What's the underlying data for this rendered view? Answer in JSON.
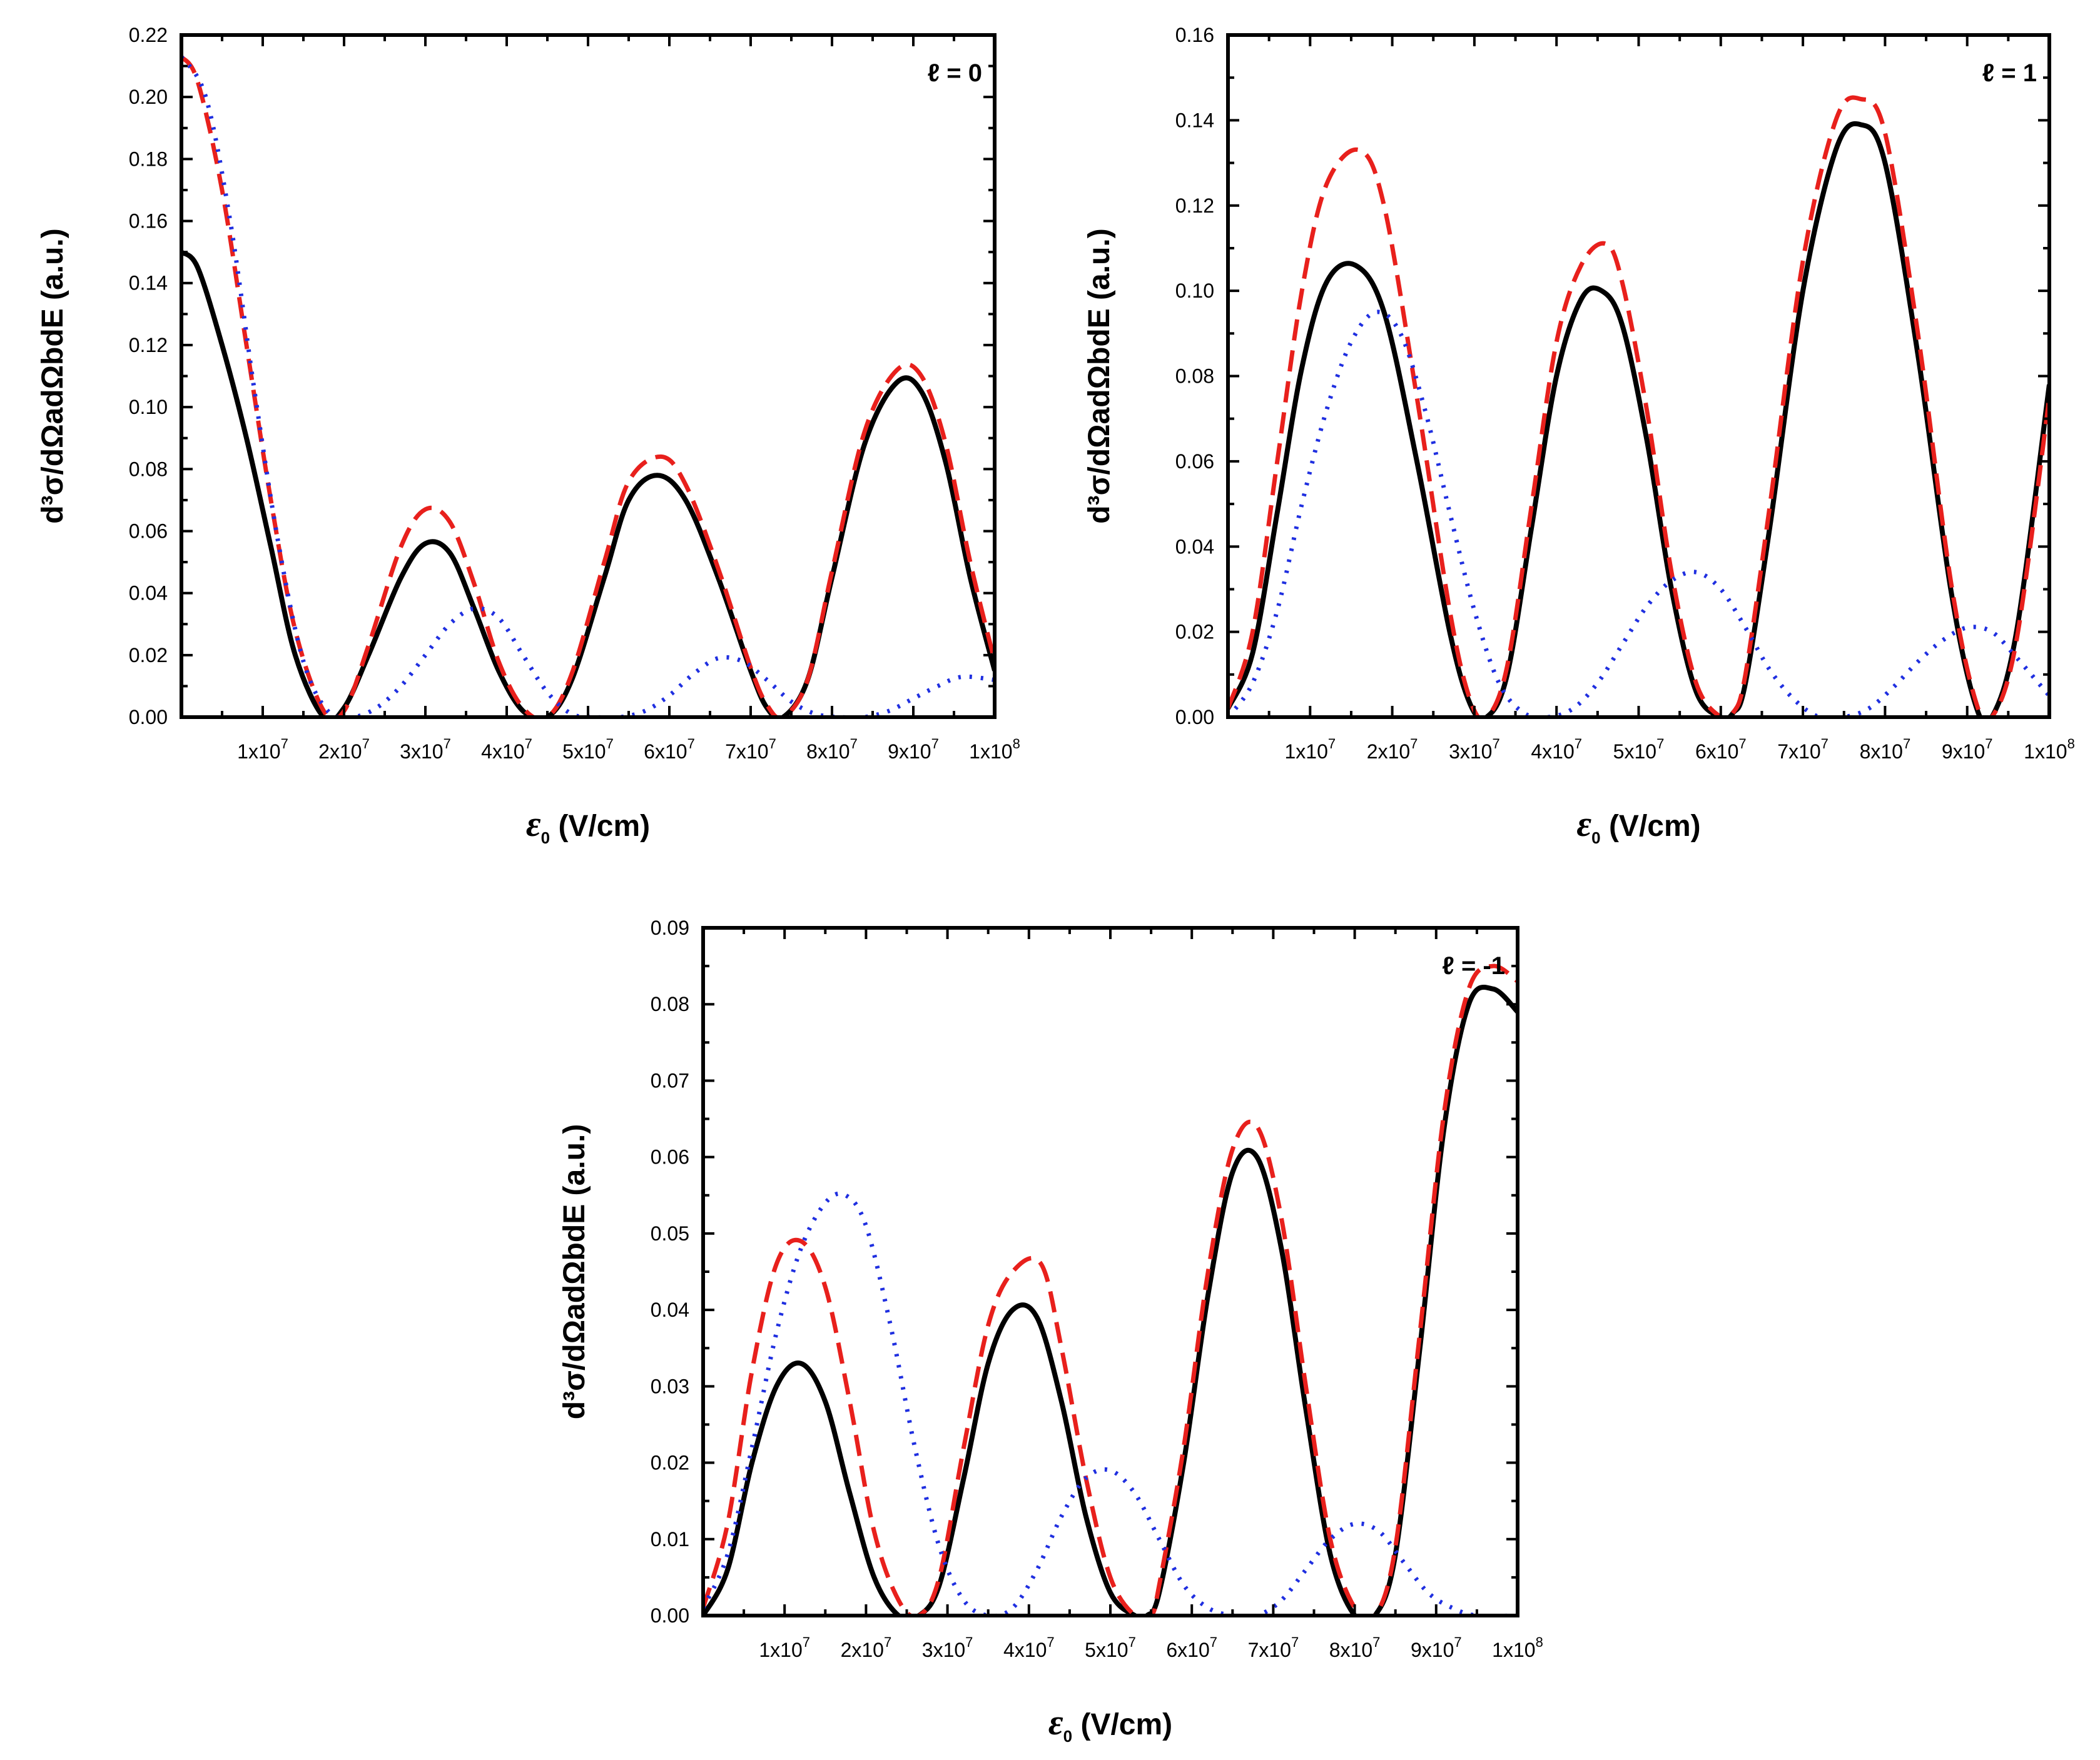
{
  "chart_data": [
    {
      "type": "line",
      "panel_label": "ℓ = 0",
      "xlabel_symbol": "ε",
      "xlabel_subscript": "0",
      "xlabel_unit": " (V/cm)",
      "ylabel": "d³σ/dΩadΩbdE (a.u.)",
      "xlim": [
        0,
        100000000
      ],
      "ylim": [
        0,
        0.22
      ],
      "x_tick_labels": [
        {
          "mant": "1x10",
          "exp": "7"
        },
        {
          "mant": "2x10",
          "exp": "7"
        },
        {
          "mant": "3x10",
          "exp": "7"
        },
        {
          "mant": "4x10",
          "exp": "7"
        },
        {
          "mant": "5x10",
          "exp": "7"
        },
        {
          "mant": "6x10",
          "exp": "7"
        },
        {
          "mant": "7x10",
          "exp": "7"
        },
        {
          "mant": "8x10",
          "exp": "7"
        },
        {
          "mant": "9x10",
          "exp": "7"
        },
        {
          "mant": "1x10",
          "exp": "8"
        }
      ],
      "x_ticks": [
        10000000,
        20000000,
        30000000,
        40000000,
        50000000,
        60000000,
        70000000,
        80000000,
        90000000,
        100000000
      ],
      "y_ticks": [
        "0.00",
        "0.02",
        "0.04",
        "0.06",
        "0.08",
        "0.10",
        "0.12",
        "0.14",
        "0.16",
        "0.18",
        "0.20",
        "0.22"
      ],
      "series": [
        {
          "name": "solid",
          "color": "#000000",
          "style": "solid",
          "x": [
            0,
            2000000,
            5000000,
            8000000,
            11000000,
            14000000,
            17500000,
            20000000,
            23000000,
            27000000,
            30000000,
            33000000,
            36000000,
            39000000,
            42000000,
            45000000,
            48000000,
            52000000,
            55000000,
            58500000,
            62000000,
            66000000,
            70000000,
            72000000,
            74000000,
            77000000,
            80000000,
            84000000,
            88000000,
            91000000,
            94000000,
            97000000,
            100000000
          ],
          "values": [
            0.15,
            0.145,
            0.12,
            0.09,
            0.055,
            0.02,
            0.0,
            0.003,
            0.02,
            0.045,
            0.056,
            0.053,
            0.035,
            0.015,
            0.002,
            0.0,
            0.012,
            0.045,
            0.07,
            0.078,
            0.07,
            0.045,
            0.015,
            0.003,
            0.0,
            0.012,
            0.045,
            0.088,
            0.108,
            0.105,
            0.082,
            0.045,
            0.015
          ]
        },
        {
          "name": "dashed",
          "color": "#e8201c",
          "style": "dashed",
          "x": [
            0,
            2000000,
            5000000,
            8000000,
            11000000,
            14000000,
            17500000,
            20000000,
            23000000,
            27000000,
            30000000,
            33000000,
            36000000,
            39000000,
            42000000,
            45000000,
            48000000,
            52000000,
            55000000,
            59000000,
            62000000,
            66000000,
            70000000,
            72000000,
            74000000,
            77000000,
            80000000,
            84000000,
            88000000,
            91000000,
            94000000,
            97000000,
            100000000
          ],
          "values": [
            0.213,
            0.205,
            0.17,
            0.12,
            0.07,
            0.028,
            0.002,
            0.002,
            0.023,
            0.055,
            0.067,
            0.063,
            0.043,
            0.018,
            0.003,
            0.0,
            0.014,
            0.05,
            0.076,
            0.084,
            0.075,
            0.048,
            0.016,
            0.004,
            0.0,
            0.012,
            0.047,
            0.092,
            0.112,
            0.11,
            0.088,
            0.05,
            0.018
          ]
        },
        {
          "name": "dotted",
          "color": "#1f2fe0",
          "style": "dotted",
          "x": [
            0,
            3000000,
            6000000,
            9000000,
            12000000,
            15000000,
            18000000,
            21000000,
            24000000,
            27000000,
            30000000,
            33000000,
            36000000,
            39000000,
            42000000,
            45000000,
            48000000,
            51000000,
            54000000,
            57000000,
            60000000,
            63000000,
            66000000,
            69000000,
            72000000,
            75000000,
            78000000,
            81000000,
            84000000,
            87000000,
            90000000,
            93000000,
            96000000,
            100000000
          ],
          "values": [
            0.213,
            0.2,
            0.16,
            0.105,
            0.055,
            0.018,
            0.002,
            0.0,
            0.003,
            0.01,
            0.02,
            0.03,
            0.035,
            0.032,
            0.02,
            0.008,
            0.001,
            0.0,
            0.0,
            0.002,
            0.007,
            0.014,
            0.019,
            0.018,
            0.012,
            0.005,
            0.001,
            0.0,
            0.0,
            0.002,
            0.006,
            0.01,
            0.013,
            0.012
          ]
        }
      ]
    },
    {
      "type": "line",
      "panel_label": "ℓ = 1",
      "xlabel_symbol": "ε",
      "xlabel_subscript": "0",
      "xlabel_unit": " (V/cm)",
      "ylabel": "d³σ/dΩadΩbdE (a.u.)",
      "xlim": [
        0,
        100000000
      ],
      "ylim": [
        0,
        0.16
      ],
      "x_tick_labels": [
        {
          "mant": "1x10",
          "exp": "7"
        },
        {
          "mant": "2x10",
          "exp": "7"
        },
        {
          "mant": "3x10",
          "exp": "7"
        },
        {
          "mant": "4x10",
          "exp": "7"
        },
        {
          "mant": "5x10",
          "exp": "7"
        },
        {
          "mant": "6x10",
          "exp": "7"
        },
        {
          "mant": "7x10",
          "exp": "7"
        },
        {
          "mant": "8x10",
          "exp": "7"
        },
        {
          "mant": "9x10",
          "exp": "7"
        },
        {
          "mant": "1x10",
          "exp": "8"
        }
      ],
      "x_ticks": [
        10000000,
        20000000,
        30000000,
        40000000,
        50000000,
        60000000,
        70000000,
        80000000,
        90000000,
        100000000
      ],
      "y_ticks": [
        "0.00",
        "0.02",
        "0.04",
        "0.06",
        "0.08",
        "0.10",
        "0.12",
        "0.14",
        "0.16"
      ],
      "series": [
        {
          "name": "solid",
          "color": "#000000",
          "style": "solid",
          "x": [
            0,
            3000000,
            6000000,
            9000000,
            12000000,
            15500000,
            19000000,
            23000000,
            27000000,
            29500000,
            31500000,
            34000000,
            37000000,
            40000000,
            43000000,
            45500000,
            48000000,
            51000000,
            54000000,
            57000000,
            60000000,
            61500000,
            63000000,
            66000000,
            70000000,
            74000000,
            77000000,
            80000000,
            84000000,
            88000000,
            91000000,
            93000000,
            96000000,
            100000000
          ],
          "values": [
            0.002,
            0.015,
            0.048,
            0.082,
            0.102,
            0.106,
            0.095,
            0.06,
            0.02,
            0.003,
            0.0,
            0.01,
            0.045,
            0.08,
            0.098,
            0.1,
            0.092,
            0.065,
            0.03,
            0.006,
            0.0,
            0.001,
            0.008,
            0.045,
            0.1,
            0.133,
            0.139,
            0.13,
            0.085,
            0.03,
            0.003,
            0.0,
            0.02,
            0.078
          ]
        },
        {
          "name": "dashed",
          "color": "#e8201c",
          "style": "dashed",
          "x": [
            0,
            3000000,
            6000000,
            9000000,
            12000000,
            16000000,
            19000000,
            23000000,
            27000000,
            29500000,
            31500000,
            34000000,
            37000000,
            40000000,
            43000000,
            46000000,
            48000000,
            51000000,
            54000000,
            57000000,
            60000000,
            61500000,
            63000000,
            66000000,
            70000000,
            74000000,
            77000000,
            80000000,
            84000000,
            88000000,
            91000000,
            93000000,
            96000000,
            100000000
          ],
          "values": [
            0.002,
            0.02,
            0.06,
            0.1,
            0.125,
            0.133,
            0.12,
            0.075,
            0.025,
            0.004,
            0.0,
            0.012,
            0.05,
            0.088,
            0.106,
            0.111,
            0.102,
            0.072,
            0.034,
            0.008,
            0.0,
            0.001,
            0.01,
            0.05,
            0.107,
            0.14,
            0.145,
            0.137,
            0.09,
            0.032,
            0.004,
            0.0,
            0.018,
            0.075
          ]
        },
        {
          "name": "dotted",
          "color": "#1f2fe0",
          "style": "dotted",
          "x": [
            0,
            3000000,
            6000000,
            9000000,
            12000000,
            15000000,
            18000000,
            21000000,
            24000000,
            27000000,
            30000000,
            33000000,
            36000000,
            39000000,
            42000000,
            45000000,
            48000000,
            51000000,
            54000000,
            57000000,
            60000000,
            63000000,
            66000000,
            69000000,
            72000000,
            75000000,
            78000000,
            81000000,
            84000000,
            87000000,
            90000000,
            93000000,
            96000000,
            100000000
          ],
          "values": [
            0.0,
            0.008,
            0.025,
            0.05,
            0.072,
            0.088,
            0.095,
            0.09,
            0.072,
            0.048,
            0.025,
            0.008,
            0.001,
            0.0,
            0.002,
            0.008,
            0.017,
            0.026,
            0.032,
            0.034,
            0.03,
            0.021,
            0.011,
            0.004,
            0.0,
            0.0,
            0.002,
            0.007,
            0.013,
            0.018,
            0.021,
            0.02,
            0.014,
            0.005
          ]
        }
      ]
    },
    {
      "type": "line",
      "panel_label": "ℓ = -1",
      "xlabel_symbol": "ε",
      "xlabel_subscript": "0",
      "xlabel_unit": " (V/cm)",
      "ylabel": "d³σ/dΩadΩbdE (a.u.)",
      "xlim": [
        0,
        100000000
      ],
      "ylim": [
        0,
        0.09
      ],
      "x_tick_labels": [
        {
          "mant": "1x10",
          "exp": "7"
        },
        {
          "mant": "2x10",
          "exp": "7"
        },
        {
          "mant": "3x10",
          "exp": "7"
        },
        {
          "mant": "4x10",
          "exp": "7"
        },
        {
          "mant": "5x10",
          "exp": "7"
        },
        {
          "mant": "6x10",
          "exp": "7"
        },
        {
          "mant": "7x10",
          "exp": "7"
        },
        {
          "mant": "8x10",
          "exp": "7"
        },
        {
          "mant": "9x10",
          "exp": "7"
        },
        {
          "mant": "1x10",
          "exp": "8"
        }
      ],
      "x_ticks": [
        10000000,
        20000000,
        30000000,
        40000000,
        50000000,
        60000000,
        70000000,
        80000000,
        90000000,
        100000000
      ],
      "y_ticks": [
        "0.00",
        "0.01",
        "0.02",
        "0.03",
        "0.04",
        "0.05",
        "0.06",
        "0.07",
        "0.08",
        "0.09"
      ],
      "series": [
        {
          "name": "solid",
          "color": "#000000",
          "style": "solid",
          "x": [
            0,
            3000000,
            6000000,
            9000000,
            12000000,
            15000000,
            18000000,
            21000000,
            24000000,
            26500000,
            29000000,
            32000000,
            35000000,
            38000000,
            41000000,
            44000000,
            47000000,
            50000000,
            53000000,
            54500000,
            56000000,
            59000000,
            62000000,
            65000000,
            68000000,
            71000000,
            74000000,
            77000000,
            80000000,
            82500000,
            85000000,
            88000000,
            91000000,
            94000000,
            97000000,
            100000000
          ],
          "values": [
            0.0,
            0.006,
            0.02,
            0.03,
            0.033,
            0.028,
            0.016,
            0.005,
            0.0,
            0.0,
            0.004,
            0.018,
            0.033,
            0.04,
            0.039,
            0.028,
            0.013,
            0.003,
            0.0,
            0.0,
            0.003,
            0.02,
            0.042,
            0.058,
            0.06,
            0.048,
            0.027,
            0.008,
            0.0,
            0.0,
            0.008,
            0.035,
            0.064,
            0.08,
            0.082,
            0.079
          ]
        },
        {
          "name": "dashed",
          "color": "#e8201c",
          "style": "dashed",
          "x": [
            0,
            3000000,
            6000000,
            9000000,
            12000000,
            15000000,
            18000000,
            21000000,
            24000000,
            26500000,
            29000000,
            32000000,
            35000000,
            38000000,
            41500000,
            44000000,
            47000000,
            50000000,
            53000000,
            55000000,
            56000000,
            59000000,
            62000000,
            65000000,
            68000000,
            71000000,
            74000000,
            77000000,
            80000000,
            82500000,
            85000000,
            88000000,
            91000000,
            94000000,
            97000000,
            100000000
          ],
          "values": [
            0.001,
            0.012,
            0.032,
            0.046,
            0.049,
            0.043,
            0.028,
            0.011,
            0.002,
            0.0,
            0.005,
            0.022,
            0.038,
            0.045,
            0.046,
            0.035,
            0.018,
            0.005,
            0.0,
            0.0,
            0.004,
            0.022,
            0.045,
            0.061,
            0.064,
            0.052,
            0.03,
            0.01,
            0.001,
            0.0,
            0.009,
            0.037,
            0.066,
            0.082,
            0.085,
            0.083
          ]
        },
        {
          "name": "dotted",
          "color": "#1f2fe0",
          "style": "dotted",
          "x": [
            0,
            3000000,
            6000000,
            9000000,
            12000000,
            15000000,
            17500000,
            20000000,
            23000000,
            26000000,
            29000000,
            32000000,
            35000000,
            38000000,
            41000000,
            44000000,
            47000000,
            50000000,
            53000000,
            56000000,
            59000000,
            62000000,
            65000000,
            68000000,
            71000000,
            74000000,
            77000000,
            80000000,
            83000000,
            86000000,
            89000000,
            92000000,
            95000000,
            100000000
          ],
          "values": [
            0.001,
            0.008,
            0.022,
            0.037,
            0.048,
            0.054,
            0.055,
            0.051,
            0.038,
            0.022,
            0.009,
            0.002,
            0.0,
            0.001,
            0.006,
            0.013,
            0.018,
            0.019,
            0.016,
            0.01,
            0.004,
            0.001,
            0.0,
            0.0,
            0.002,
            0.006,
            0.01,
            0.012,
            0.011,
            0.007,
            0.003,
            0.001,
            0.0,
            0.0
          ]
        }
      ]
    }
  ]
}
